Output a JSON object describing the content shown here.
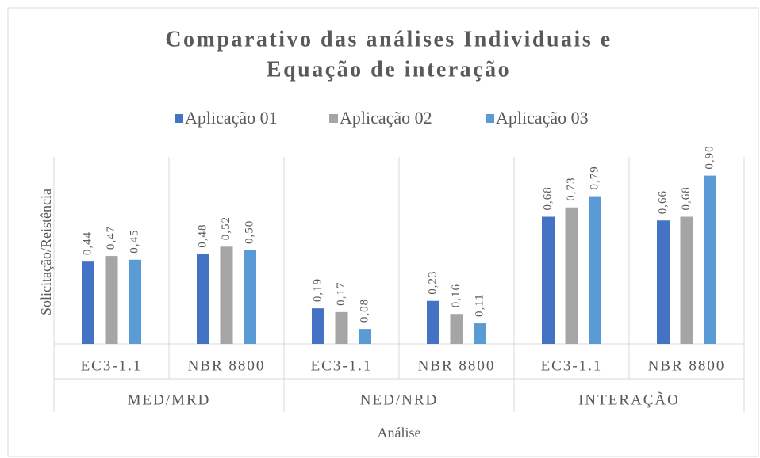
{
  "chart_data": {
    "type": "bar",
    "title": [
      "Comparativo das análises Individuais e",
      "Equação de interação"
    ],
    "categories": [
      "EC3-1.1",
      "NBR 8800",
      "EC3-1.1",
      "NBR 8800",
      "EC3-1.1",
      "NBR 8800"
    ],
    "category_groups": [
      "MED/MRD",
      "NED/NRD",
      "INTERAÇÃO"
    ],
    "x_label": "Análise",
    "y_label": "Solicitação/Reistência",
    "ylim": [
      0,
      1
    ],
    "series": [
      {
        "name": "Aplicação 01",
        "color": "#4472c4",
        "values": [
          0.44,
          0.48,
          0.19,
          0.23,
          0.68,
          0.66
        ],
        "value_labels": [
          "0,44",
          "0,48",
          "0,19",
          "0,23",
          "0,68",
          "0,66"
        ]
      },
      {
        "name": "Aplicação 02",
        "color": "#a5a5a5",
        "values": [
          0.47,
          0.52,
          0.17,
          0.16,
          0.73,
          0.68
        ],
        "value_labels": [
          "0,47",
          "0,52",
          "0,17",
          "0,16",
          "0,73",
          "0,68"
        ]
      },
      {
        "name": "Aplicação 03",
        "color": "#5b9bd5",
        "values": [
          0.45,
          0.5,
          0.08,
          0.11,
          0.79,
          0.9
        ],
        "value_labels": [
          "0,45",
          "0,50",
          "0,08",
          "0,11",
          "0,79",
          "0,90"
        ]
      }
    ]
  }
}
